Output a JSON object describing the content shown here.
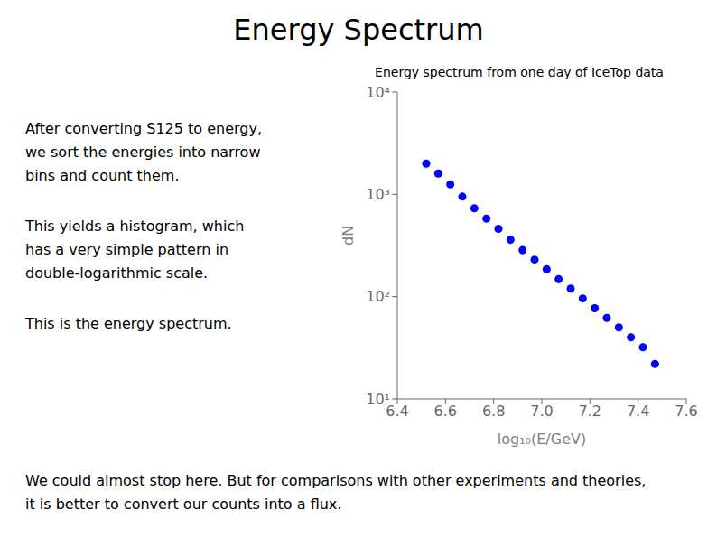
{
  "chart_data": {
    "type": "scatter",
    "title": "Energy Spectrum",
    "subtitle": "Energy spectrum from one day of IceTop data",
    "xlabel": "log₁₀(E/GeV)",
    "ylabel": "dN",
    "x": [
      6.52,
      6.57,
      6.62,
      6.67,
      6.72,
      6.77,
      6.82,
      6.87,
      6.92,
      6.97,
      7.02,
      7.07,
      7.12,
      7.17,
      7.22,
      7.27,
      7.32,
      7.37,
      7.42,
      7.47
    ],
    "values": [
      2000,
      1600,
      1250,
      950,
      730,
      580,
      460,
      360,
      285,
      230,
      185,
      148,
      120,
      96,
      77,
      62,
      50,
      40,
      32,
      22
    ],
    "color": "#0000FF",
    "xlim": [
      6.4,
      7.6
    ],
    "ylim": [
      10,
      10000
    ],
    "xticks": [
      6.4,
      6.6,
      6.8,
      {
        "value": 7.0,
        "label": "7.0"
      },
      7.2,
      7.4,
      7.6
    ],
    "yticks": [
      {
        "value": 10,
        "label": "10¹"
      },
      {
        "value": 100,
        "label": "10²"
      },
      {
        "value": 1000,
        "label": "10³"
      },
      {
        "value": 10000,
        "label": "10⁴"
      }
    ],
    "log": "y",
    "grid": false,
    "annotations": [
      [
        "After converting S125 to energy,",
        "we sort the energies into narrow",
        "bins and count them."
      ],
      [
        "This yields a histogram, which",
        "has a very simple pattern in",
        "double-logarithmic scale."
      ],
      [
        "This is the energy spectrum."
      ],
      [
        "We could almost stop here. But for comparisons with other experiments and theories,",
        "it is better to convert our counts into a flux."
      ]
    ]
  }
}
